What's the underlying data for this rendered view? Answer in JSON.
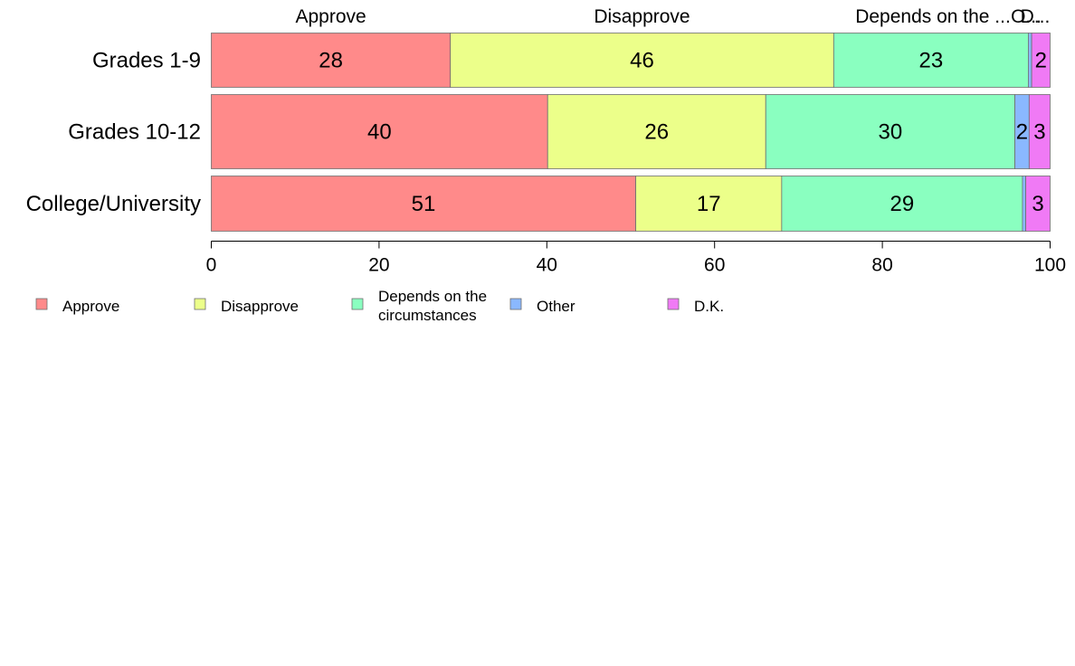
{
  "chart_data": {
    "type": "bar",
    "orientation": "horizontal",
    "stacked": true,
    "categories": [
      "Grades 1-9",
      "Grades 10-12",
      "College/University"
    ],
    "series": [
      {
        "name": "Approve",
        "color": "#ff8a8a",
        "values": [
          28.5,
          40.1,
          50.6
        ],
        "labels": [
          "28",
          "40",
          "51"
        ]
      },
      {
        "name": "Disapprove",
        "color": "#ecff8a",
        "values": [
          45.7,
          26.0,
          17.4
        ],
        "labels": [
          "46",
          "26",
          "17"
        ]
      },
      {
        "name": "Depends on the circumstances",
        "color": "#8affc0",
        "values": [
          23.2,
          29.7,
          28.7
        ],
        "labels": [
          "23",
          "30",
          "29"
        ]
      },
      {
        "name": "Other",
        "color": "#8ab8ff",
        "values": [
          0.4,
          1.7,
          0.4
        ],
        "labels": [
          "",
          "2",
          ""
        ]
      },
      {
        "name": "D.K.",
        "color": "#f07af5",
        "values": [
          2.2,
          2.5,
          2.9
        ],
        "labels": [
          "2",
          "3",
          "3"
        ]
      }
    ],
    "top_labels": [
      "Approve",
      "Disapprove",
      "Depends on the ...",
      "O...",
      "D..."
    ],
    "xlim": [
      0,
      100
    ],
    "xticks": [
      "0",
      "20",
      "40",
      "60",
      "80",
      "100"
    ],
    "legend": {
      "position": "bottom",
      "labels": [
        "Approve",
        "Disapprove",
        "Depends on the\ncircumstances",
        "Other",
        "D.K."
      ]
    },
    "grid": false
  }
}
